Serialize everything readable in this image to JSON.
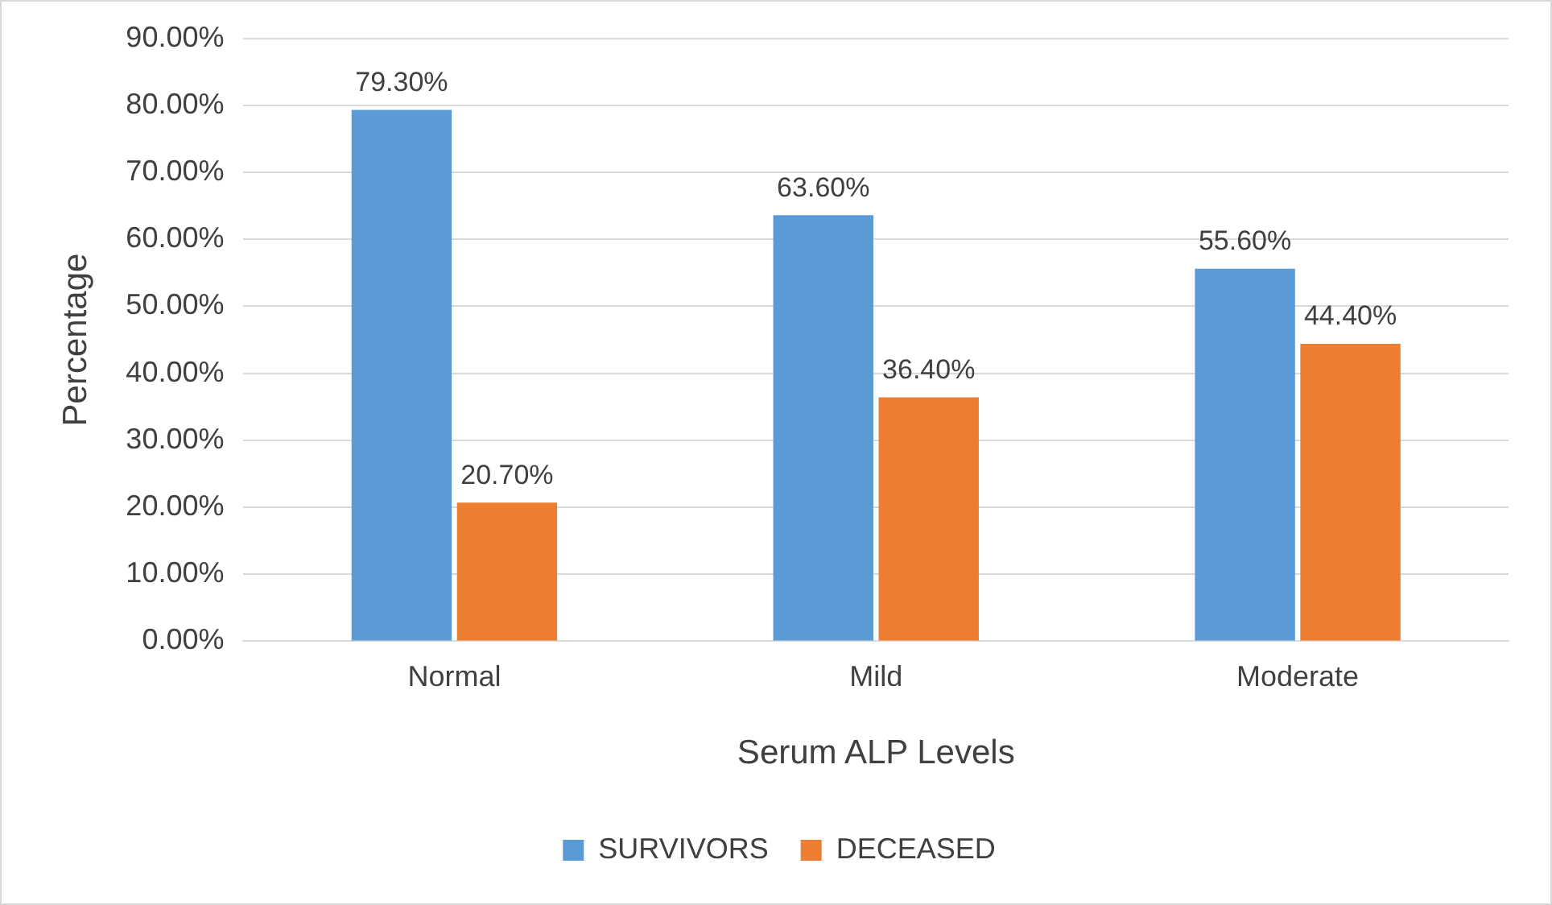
{
  "chart_data": {
    "type": "bar",
    "xlabel": "Serum ALP Levels",
    "ylabel": "Percentage",
    "categories": [
      "Normal",
      "Mild",
      "Moderate"
    ],
    "series": [
      {
        "name": "SURVIVORS",
        "color": "#5b9bd5",
        "values": [
          79.3,
          63.6,
          55.6
        ],
        "value_labels": [
          "79.30%",
          "63.60%",
          "55.60%"
        ]
      },
      {
        "name": "DECEASED",
        "color": "#ed7d31",
        "values": [
          20.7,
          36.4,
          44.4
        ],
        "value_labels": [
          "20.70%",
          "36.40%",
          "44.40%"
        ]
      }
    ],
    "ylim": [
      0,
      90
    ],
    "yticks": [
      {
        "value": 0,
        "label": "0.00%"
      },
      {
        "value": 10,
        "label": "10.00%"
      },
      {
        "value": 20,
        "label": "20.00%"
      },
      {
        "value": 30,
        "label": "30.00%"
      },
      {
        "value": 40,
        "label": "40.00%"
      },
      {
        "value": 50,
        "label": "50.00%"
      },
      {
        "value": 60,
        "label": "60.00%"
      },
      {
        "value": 70,
        "label": "70.00%"
      },
      {
        "value": 80,
        "label": "80.00%"
      },
      {
        "value": 90,
        "label": "90.00%"
      }
    ],
    "grid": "y",
    "legend": "bottom"
  }
}
